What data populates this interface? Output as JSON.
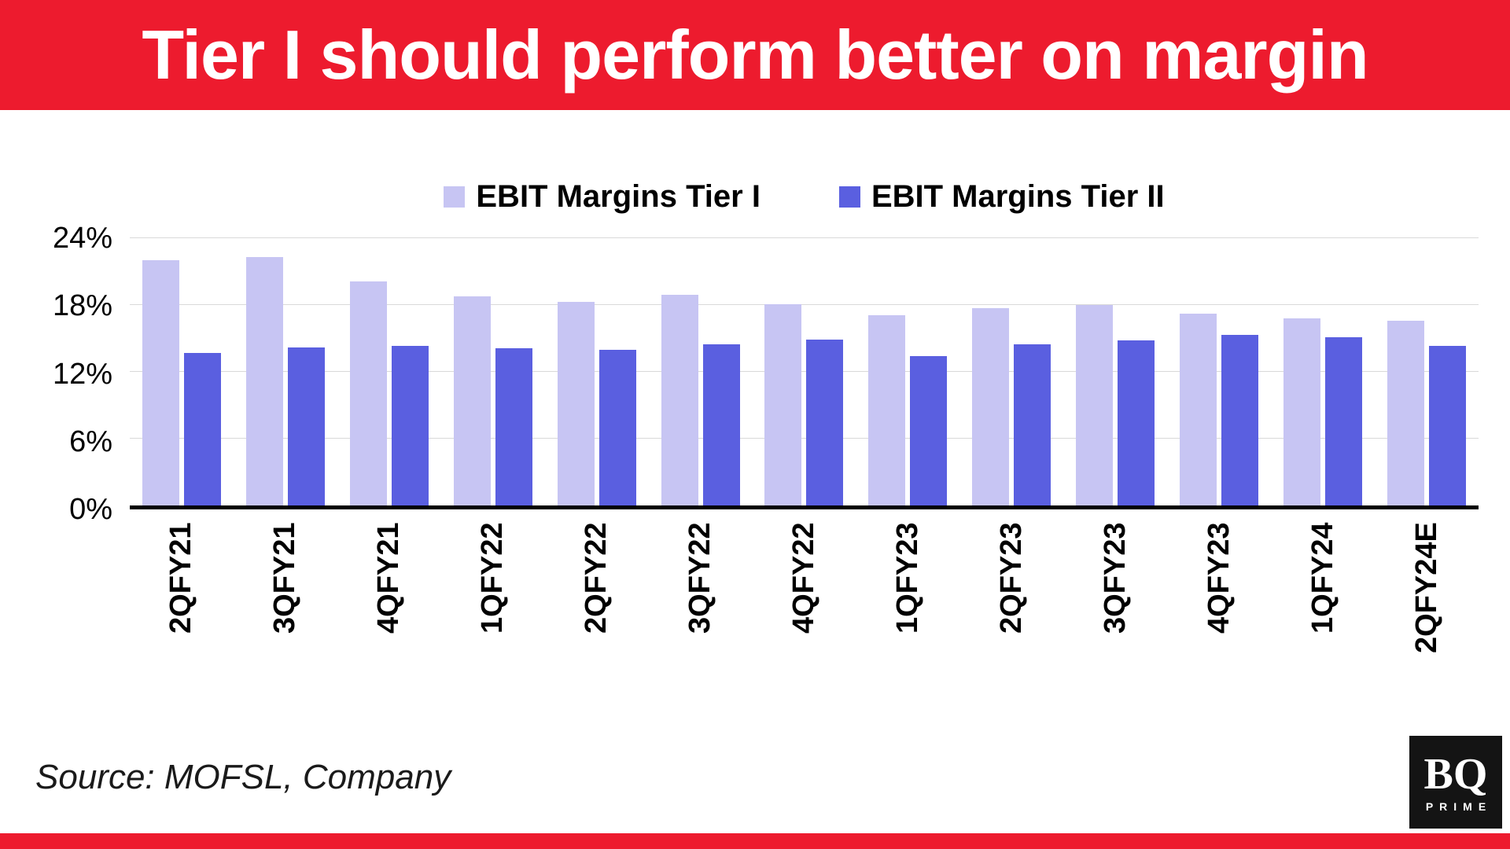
{
  "header": {
    "title": "Tier I should perform better on margin"
  },
  "colors": {
    "accent_red": "#ED1B2E",
    "tier1_bar": "#C7C5F3",
    "tier2_bar": "#5A5FE0",
    "gridline": "#D9D9D9",
    "axis": "#000000"
  },
  "chart_data": {
    "type": "bar",
    "title": "Tier I should perform better on margin",
    "categories": [
      "2QFY21",
      "3QFY21",
      "4QFY21",
      "1QFY22",
      "2QFY22",
      "3QFY22",
      "4QFY22",
      "1QFY23",
      "2QFY23",
      "3QFY23",
      "4QFY23",
      "1QFY24",
      "2QFY24E"
    ],
    "series": [
      {
        "name": "EBIT Margins Tier I",
        "color": "#C7C5F3",
        "values": [
          22.0,
          22.3,
          20.1,
          18.8,
          18.3,
          18.9,
          18.1,
          17.1,
          17.7,
          18.0,
          17.2,
          16.8,
          16.6
        ]
      },
      {
        "name": "EBIT Margins Tier II",
        "color": "#5A5FE0",
        "values": [
          13.7,
          14.2,
          14.3,
          14.1,
          14.0,
          14.5,
          14.9,
          13.4,
          14.5,
          14.8,
          15.3,
          15.1,
          14.3
        ]
      }
    ],
    "xlabel": "",
    "ylabel": "",
    "ylim": [
      0,
      24
    ],
    "yticks": [
      {
        "value": 0,
        "label": "0%"
      },
      {
        "value": 6,
        "label": "6%"
      },
      {
        "value": 12,
        "label": "12%"
      },
      {
        "value": 18,
        "label": "18%"
      },
      {
        "value": 24,
        "label": "24%"
      }
    ],
    "grid": true,
    "legend_position": "top"
  },
  "footer": {
    "source": "Source: MOFSL, Company",
    "logo": {
      "main": "BQ",
      "sub": "PRIME"
    }
  }
}
